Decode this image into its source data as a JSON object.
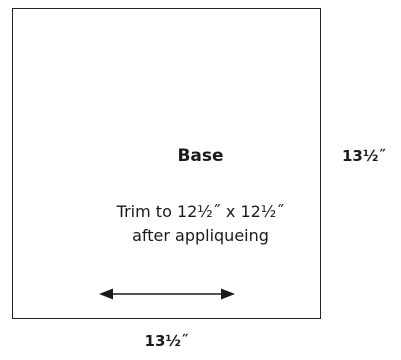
{
  "block": {
    "label": "Base",
    "instructions": [
      "Trim to 12½˝ x 12½˝",
      "after appliqueing"
    ]
  },
  "dimensions": {
    "height": "13½˝",
    "width": "13½˝"
  },
  "grain_arrow": {
    "icon": "double-headed-arrow-icon",
    "color": "#1a1a1a"
  }
}
